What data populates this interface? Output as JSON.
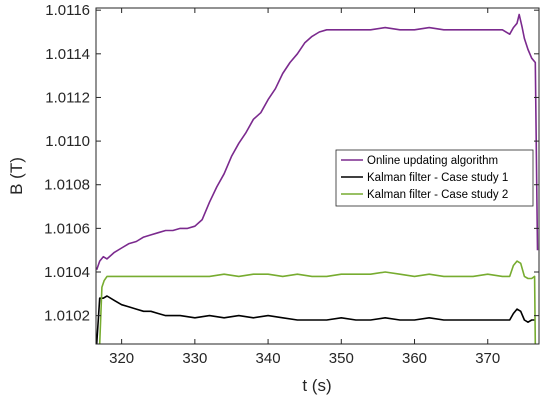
{
  "chart_data": {
    "type": "line",
    "xlabel": "t (s)",
    "ylabel": "B (T)",
    "xlim": [
      316.5,
      377
    ],
    "ylim": [
      1.01007,
      1.01161
    ],
    "xticks": [
      320,
      330,
      340,
      350,
      360,
      370
    ],
    "xtick_labels": [
      "320",
      "330",
      "340",
      "350",
      "360",
      "370"
    ],
    "yticks": [
      1.0102,
      1.0104,
      1.0106,
      1.0108,
      1.011,
      1.0112,
      1.0114,
      1.0116
    ],
    "ytick_labels": [
      "1.0102",
      "1.0104",
      "1.0106",
      "1.0108",
      "1.0110",
      "1.0112",
      "1.0114",
      "1.0116"
    ],
    "grid": false,
    "legend_position": "center-right",
    "series": [
      {
        "name": "Online updating algorithm",
        "color": "#7b2a8e",
        "x": [
          316.6,
          317.0,
          317.5,
          318.0,
          319.0,
          320.0,
          321.0,
          322.0,
          323.0,
          324.0,
          325.0,
          326.0,
          327.0,
          328.0,
          329.0,
          330.0,
          331.0,
          332.0,
          333.0,
          334.0,
          335.0,
          336.0,
          337.0,
          338.0,
          339.0,
          340.0,
          341.0,
          342.0,
          343.0,
          344.0,
          345.0,
          346.0,
          347.0,
          348.0,
          350.0,
          352.0,
          354.0,
          356.0,
          358.0,
          360.0,
          362.0,
          364.0,
          366.0,
          368.0,
          370.0,
          372.0,
          373.0,
          373.5,
          374.0,
          374.3,
          374.7,
          375.0,
          375.5,
          376.0,
          376.5,
          376.8
        ],
        "y": [
          1.01041,
          1.01045,
          1.01047,
          1.01046,
          1.01049,
          1.01051,
          1.01053,
          1.01054,
          1.01056,
          1.01057,
          1.01058,
          1.01059,
          1.01059,
          1.0106,
          1.0106,
          1.01061,
          1.01064,
          1.01072,
          1.01079,
          1.01085,
          1.01093,
          1.01099,
          1.01104,
          1.0111,
          1.01113,
          1.01119,
          1.01124,
          1.01131,
          1.01136,
          1.0114,
          1.01145,
          1.01148,
          1.0115,
          1.01151,
          1.01151,
          1.01151,
          1.01151,
          1.01152,
          1.01151,
          1.01151,
          1.01152,
          1.01151,
          1.01151,
          1.01151,
          1.01151,
          1.01151,
          1.01149,
          1.01152,
          1.01154,
          1.01158,
          1.01152,
          1.01147,
          1.01142,
          1.01138,
          1.01136,
          1.0105
        ]
      },
      {
        "name": "Kalman filter - Case study 1",
        "color": "#000000",
        "x": [
          316.6,
          317.0,
          317.5,
          318.0,
          319.0,
          320.0,
          321.0,
          322.0,
          323.0,
          324.0,
          325.0,
          326.0,
          327.0,
          328.0,
          330.0,
          332.0,
          334.0,
          336.0,
          338.0,
          340.0,
          342.0,
          344.0,
          346.0,
          348.0,
          350.0,
          352.0,
          354.0,
          356.0,
          358.0,
          360.0,
          362.0,
          364.0,
          366.0,
          368.0,
          370.0,
          372.0,
          373.0,
          373.5,
          374.0,
          374.5,
          375.0,
          375.5,
          376.0,
          376.5
        ],
        "y": [
          1.01007,
          1.01028,
          1.01028,
          1.01029,
          1.01027,
          1.01025,
          1.01024,
          1.01023,
          1.01022,
          1.01022,
          1.01021,
          1.0102,
          1.0102,
          1.0102,
          1.01019,
          1.0102,
          1.01019,
          1.0102,
          1.01019,
          1.0102,
          1.01019,
          1.01018,
          1.01018,
          1.01018,
          1.01019,
          1.01018,
          1.01018,
          1.01019,
          1.01018,
          1.01018,
          1.01019,
          1.01018,
          1.01018,
          1.01018,
          1.01018,
          1.01018,
          1.01018,
          1.01021,
          1.01023,
          1.01022,
          1.01018,
          1.01017,
          1.01018,
          1.01018
        ]
      },
      {
        "name": "Kalman filter - Case study 2",
        "color": "#77ac30",
        "x": [
          317.0,
          317.3,
          317.6,
          318.0,
          319.0,
          320.0,
          322.0,
          324.0,
          326.0,
          328.0,
          330.0,
          332.0,
          334.0,
          336.0,
          338.0,
          340.0,
          342.0,
          344.0,
          346.0,
          348.0,
          350.0,
          352.0,
          354.0,
          356.0,
          358.0,
          360.0,
          362.0,
          364.0,
          366.0,
          368.0,
          370.0,
          372.0,
          373.0,
          373.5,
          374.0,
          374.5,
          375.0,
          375.5,
          376.0,
          376.4,
          376.5
        ],
        "y": [
          1.01007,
          1.01033,
          1.01036,
          1.01038,
          1.01038,
          1.01038,
          1.01038,
          1.01038,
          1.01038,
          1.01038,
          1.01038,
          1.01038,
          1.01039,
          1.01038,
          1.01039,
          1.01039,
          1.01038,
          1.01039,
          1.01038,
          1.01038,
          1.01039,
          1.01039,
          1.01039,
          1.0104,
          1.01039,
          1.01038,
          1.01039,
          1.01038,
          1.01038,
          1.01038,
          1.01039,
          1.01038,
          1.01038,
          1.01043,
          1.01045,
          1.01044,
          1.01038,
          1.01037,
          1.01037,
          1.01038,
          1.01007
        ]
      }
    ]
  }
}
